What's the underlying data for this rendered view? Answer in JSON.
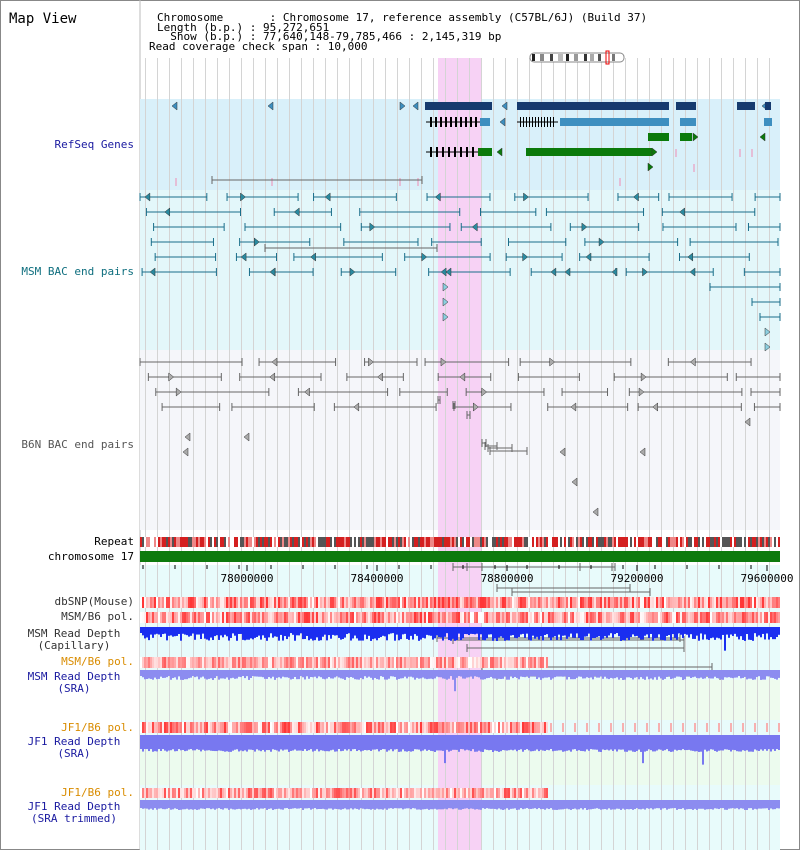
{
  "title": "Map View",
  "info": {
    "chromosome": "Chromosome       : Chromosome 17, reference assembly (C57BL/6J) (Build 37)",
    "length": "Length (b.p.) : 95,272,651",
    "show": "  Show (b.p.) : 77,640,148-79,785,466 : 2,145,319 bp",
    "coverage": "Read coverage check span : 10,000"
  },
  "tracks": {
    "refseq": "RefSeq Genes",
    "msm_bac": "MSM BAC end pairs",
    "b6n_bac": "B6N BAC end pairs",
    "repeat": "Repeat",
    "chromosome": "chromosome 17",
    "dbsnp": "dbSNP(Mouse)",
    "msm_b6_pol": "MSM/B6 pol.",
    "msm_depth_cap": "MSM Read Depth\n(Capillary)",
    "msm_b6_pol2": "MSM/B6 pol.",
    "msm_depth_sra": "MSM Read Depth\n(SRA)",
    "jf1_b6_pol": "JF1/B6 pol.",
    "jf1_depth_sra": "JF1 Read Depth\n(SRA)",
    "jf1_b6_pol2": "JF1/B6 pol.",
    "jf1_depth_trim": "JF1 Read Depth\n(SRA trimmed)"
  },
  "axis": {
    "ticks": [
      "78000000",
      "78400000",
      "78800000",
      "79200000",
      "79600000"
    ]
  },
  "colors": {
    "refseq_bg": "#d9f0fa",
    "msm_bg": "#e3f7fa",
    "b6n_bg": "#f5f6fa",
    "highlight": "#f7d2f5",
    "gene_dark": "#163a6e",
    "gene_mid": "#3e8fc0",
    "gene_green": "#0b7a0b",
    "msm_line": "#1a6e8a",
    "b6n_line": "#666666",
    "chrom_bar": "#0d7a0d",
    "label_blue": "#1a1aa0",
    "label_teal": "#0e6e7e",
    "label_orange": "#d98c00",
    "label_dark": "#333333"
  }
}
